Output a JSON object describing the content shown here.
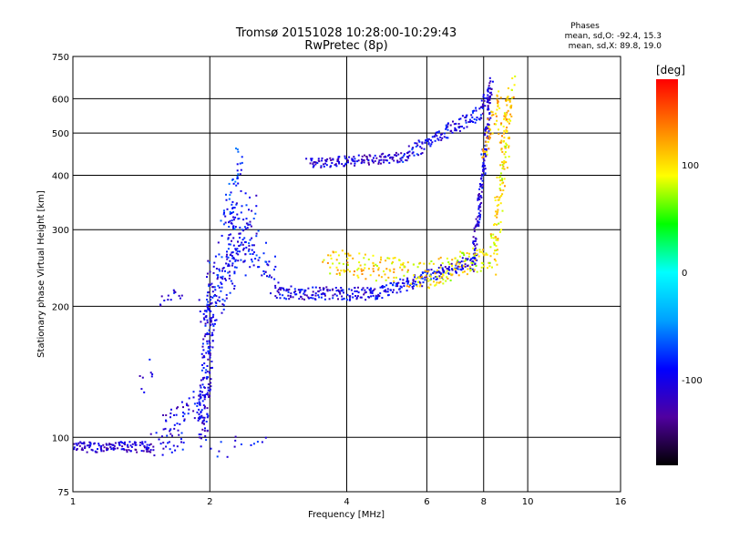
{
  "header": {
    "title": "Tromsø 20151028 10:28:00-10:29:43",
    "subtitle": "RwPretec (8p)",
    "stats_title": "Phases",
    "stats_o": "mean, sd,O: -92.4, 15.3",
    "stats_x": "mean, sd,X: 89.8, 19.0"
  },
  "chart_data": {
    "type": "scatter",
    "title": "Tromsø 20151028 10:28:00-10:29:43",
    "subtitle": "RwPretec (8p)",
    "xlabel": "Frequency [MHz]",
    "ylabel": "Stationary phase Virtual Height [km]",
    "x_scale": "log",
    "y_scale": "log",
    "xlim": [
      1,
      16
    ],
    "ylim": [
      75,
      750
    ],
    "x_ticks": [
      1,
      2,
      4,
      6,
      8,
      10,
      16
    ],
    "y_ticks": [
      75,
      100,
      200,
      300,
      400,
      500,
      600,
      750
    ],
    "grid": true,
    "colorbar": {
      "label": "[deg]",
      "range": [
        -180,
        180
      ],
      "ticks": [
        -100,
        0,
        100
      ],
      "colors": [
        "#000000",
        "#5000a0",
        "#0000ff",
        "#00a0ff",
        "#00ffff",
        "#00ff00",
        "#ffff00",
        "#ff8000",
        "#ff0000"
      ]
    },
    "series": [
      {
        "traces": [
          {
            "f0": 1.0,
            "f1": 1.5,
            "h0": 95,
            "h1": 95,
            "n": 130,
            "p": -110,
            "jf": 0.008,
            "jh": 0.012
          },
          {
            "f0": 1.5,
            "f1": 1.75,
            "h0": 96,
            "h1": 100,
            "n": 30,
            "p": -100,
            "jf": 0.01,
            "jh": 0.03
          },
          {
            "f0": 1.6,
            "f1": 1.95,
            "h0": 105,
            "h1": 125,
            "n": 50,
            "p": -105,
            "jf": 0.01,
            "jh": 0.03
          },
          {
            "f0": 1.92,
            "f1": 2.02,
            "h0": 100,
            "h1": 210,
            "n": 170,
            "p": -100,
            "jf": 0.012,
            "jh": 0.03
          },
          {
            "f0": 2.0,
            "f1": 2.45,
            "h0": 205,
            "h1": 320,
            "n": 190,
            "p": -95,
            "jf": 0.025,
            "jh": 0.06
          },
          {
            "f0": 2.18,
            "f1": 2.32,
            "h0": 300,
            "h1": 430,
            "n": 50,
            "p": -80,
            "jf": 0.015,
            "jh": 0.04
          },
          {
            "f0": 2.4,
            "f1": 2.8,
            "h0": 280,
            "h1": 230,
            "n": 50,
            "p": -90,
            "jf": 0.02,
            "jh": 0.04
          },
          {
            "f0": 2.8,
            "f1": 4.7,
            "h0": 215,
            "h1": 213,
            "n": 160,
            "p": -105,
            "jf": 0.006,
            "jh": 0.015
          },
          {
            "f0": 4.7,
            "f1": 7.7,
            "h0": 214,
            "h1": 255,
            "n": 170,
            "p": -100,
            "jf": 0.006,
            "jh": 0.015
          },
          {
            "f0": 7.6,
            "f1": 8.0,
            "h0": 250,
            "h1": 440,
            "n": 90,
            "p": -105,
            "jf": 0.004,
            "jh": 0.03
          },
          {
            "f0": 8.0,
            "f1": 8.3,
            "h0": 420,
            "h1": 640,
            "n": 60,
            "p": -105,
            "jf": 0.004,
            "jh": 0.03
          },
          {
            "f0": 3.3,
            "f1": 5.3,
            "h0": 425,
            "h1": 440,
            "n": 130,
            "p": -110,
            "jf": 0.006,
            "jh": 0.012
          },
          {
            "f0": 5.3,
            "f1": 7.9,
            "h0": 440,
            "h1": 560,
            "n": 130,
            "p": -95,
            "jf": 0.006,
            "jh": 0.015
          },
          {
            "f0": 7.9,
            "f1": 8.35,
            "h0": 560,
            "h1": 645,
            "n": 30,
            "p": -110,
            "jf": 0.005,
            "jh": 0.02
          },
          {
            "f0": 3.6,
            "f1": 6.0,
            "h0": 255,
            "h1": 235,
            "n": 130,
            "p": 105,
            "jf": 0.008,
            "jh": 0.03
          },
          {
            "f0": 6.0,
            "f1": 8.4,
            "h0": 235,
            "h1": 265,
            "n": 110,
            "p": 95,
            "jf": 0.007,
            "jh": 0.03
          },
          {
            "f0": 8.4,
            "f1": 9.1,
            "h0": 260,
            "h1": 560,
            "n": 110,
            "p": 100,
            "jf": 0.006,
            "jh": 0.05
          },
          {
            "f0": 8.7,
            "f1": 9.3,
            "h0": 480,
            "h1": 640,
            "n": 45,
            "p": 110,
            "jf": 0.005,
            "jh": 0.03
          },
          {
            "f0": 8.0,
            "f1": 8.7,
            "h0": 460,
            "h1": 600,
            "n": 45,
            "p": 110,
            "jf": 0.005,
            "jh": 0.03
          },
          {
            "f0": 1.55,
            "f1": 1.75,
            "h0": 200,
            "h1": 220,
            "n": 14,
            "p": -100,
            "jf": 0.01,
            "jh": 0.02
          },
          {
            "f0": 1.4,
            "f1": 1.5,
            "h0": 130,
            "h1": 145,
            "n": 8,
            "p": -100,
            "jf": 0.01,
            "jh": 0.02
          },
          {
            "f0": 2.0,
            "f1": 2.6,
            "h0": 92,
            "h1": 100,
            "n": 14,
            "p": -100,
            "jf": 0.015,
            "jh": 0.02
          }
        ]
      }
    ]
  }
}
